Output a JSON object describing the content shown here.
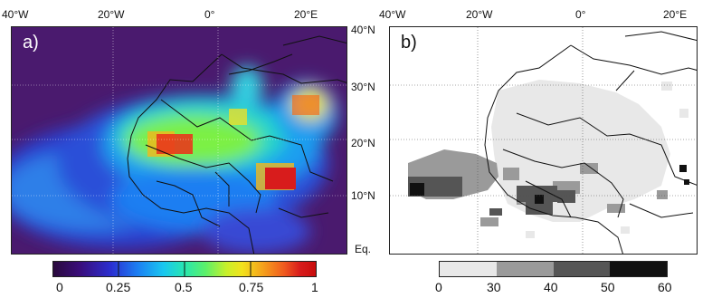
{
  "panel_a": {
    "label": "a)",
    "lon_ticks": [
      "40°W",
      "20°W",
      "0°",
      "20°E"
    ],
    "colorbar_ticks": [
      "0",
      "0.25",
      "0.5",
      "0.75",
      "1"
    ]
  },
  "panel_b": {
    "label": "b)",
    "lon_ticks": [
      "40°W",
      "20°W",
      "0°",
      "20°E"
    ],
    "lat_ticks": [
      "40°N",
      "30°N",
      "20°N",
      "10°N",
      "Eq."
    ],
    "colorbar_ticks": [
      "0",
      "30",
      "40",
      "50",
      "60"
    ],
    "colorbar_colors": [
      "#e8e8e8",
      "#9a9a9a",
      "#555555",
      "#111111"
    ]
  }
}
